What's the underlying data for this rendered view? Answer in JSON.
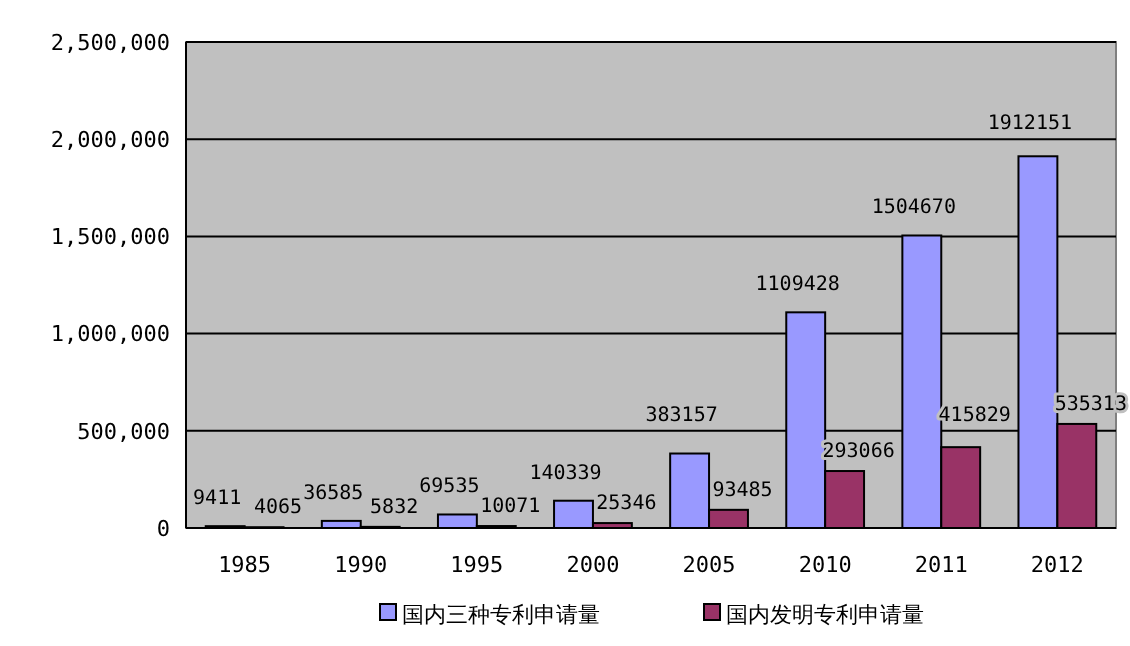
{
  "chart_data": {
    "type": "bar",
    "categories": [
      "1985",
      "1990",
      "1995",
      "2000",
      "2005",
      "2010",
      "2011",
      "2012"
    ],
    "series": [
      {
        "name": "国内三种专利申请量",
        "color": "#9999ff",
        "values": [
          9411,
          36585,
          69535,
          140339,
          383157,
          1109428,
          1504670,
          1912151
        ]
      },
      {
        "name": "国内发明专利申请量",
        "color": "#993366",
        "values": [
          4065,
          5832,
          10071,
          25346,
          93485,
          293066,
          415829,
          535313
        ]
      }
    ],
    "ylim": [
      0,
      2500000
    ],
    "yticks": [
      {
        "value": 0,
        "label": "0"
      },
      {
        "value": 500000,
        "label": "500,000"
      },
      {
        "value": 1000000,
        "label": "1,000,000"
      },
      {
        "value": 1500000,
        "label": "1,500,000"
      },
      {
        "value": 2000000,
        "label": "2,000,000"
      },
      {
        "value": 2500000,
        "label": "2,500,000"
      }
    ],
    "grid": "y",
    "legend": "bottom",
    "data_labels": true
  }
}
